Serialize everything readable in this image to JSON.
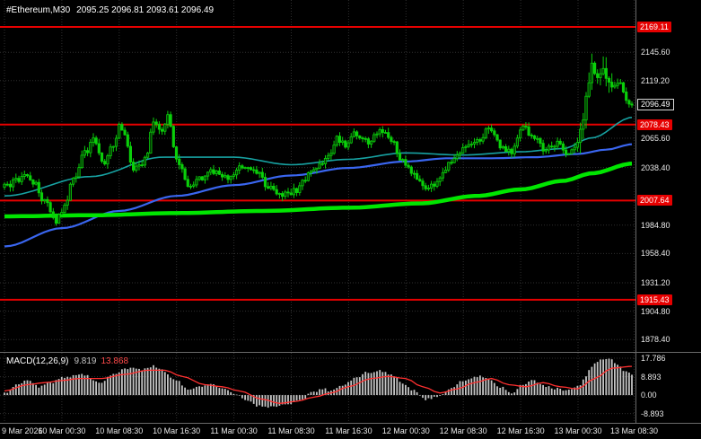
{
  "header": {
    "symbol": "#Ethereum,M30",
    "ohlc": "2095.25 2096.81 2093.61 2096.49"
  },
  "macd": {
    "label": "MACD(12,26,9)",
    "value_main": "9.819",
    "value_signal": "13.868"
  },
  "colors": {
    "background": "#000000",
    "grid": "#2f2f2f",
    "candle": "#0acf0a",
    "candle_fill": "#033703",
    "level_line": "#e60000",
    "ma_fast_teal": "#17a2a2",
    "ma_mid_blue": "#3a66f0",
    "ma_slow_green": "#00e600",
    "macd_hist": "#c4c4c4",
    "macd_signal": "#ff3030",
    "axis_text": "#e8e8e8"
  },
  "chart_data": {
    "type": "candlestick",
    "symbol": "#Ethereum",
    "timeframe": "M30",
    "title": "#Ethereum,M30 price chart with MACD(12,26,9)",
    "last_price": 2096.49,
    "current_label": {
      "text": "2096.49",
      "price": 2096.49
    },
    "ylim": [
      1866.9,
      2194.2
    ],
    "n_candles": 220,
    "levels": [
      {
        "text": "2169.11",
        "price": 2169.11
      },
      {
        "text": "2078.43",
        "price": 2078.43
      },
      {
        "text": "2007.64",
        "price": 2007.64
      },
      {
        "text": "1915.43",
        "price": 1915.43
      }
    ],
    "price_axis_labels": [
      {
        "text": "2145.60",
        "price": 2145.6
      },
      {
        "text": "2119.20",
        "price": 2119.2
      },
      {
        "text": "2065.60",
        "price": 2065.6
      },
      {
        "text": "2038.40",
        "price": 2038.4
      },
      {
        "text": "1984.80",
        "price": 1984.8
      },
      {
        "text": "1958.40",
        "price": 1958.4
      },
      {
        "text": "1931.20",
        "price": 1931.2
      },
      {
        "text": "1904.80",
        "price": 1904.8
      },
      {
        "text": "1878.40",
        "price": 1878.4
      }
    ],
    "time_labels": [
      "9 Mar 2026",
      "10 Mar 00:30",
      "10 Mar 08:30",
      "10 Mar 16:30",
      "11 Mar 00:30",
      "11 Mar 08:30",
      "11 Mar 16:30",
      "12 Mar 00:30",
      "12 Mar 08:30",
      "12 Mar 16:30",
      "13 Mar 00:30",
      "13 Mar 08:30"
    ],
    "price_path": [
      [
        0,
        2020
      ],
      [
        4,
        2026
      ],
      [
        8,
        2031
      ],
      [
        11,
        2022
      ],
      [
        14,
        2006
      ],
      [
        18,
        1989
      ],
      [
        21,
        2002
      ],
      [
        24,
        2028
      ],
      [
        28,
        2052
      ],
      [
        31,
        2064
      ],
      [
        35,
        2043
      ],
      [
        38,
        2060
      ],
      [
        40,
        2077
      ],
      [
        42,
        2068
      ],
      [
        45,
        2034
      ],
      [
        47,
        2040
      ],
      [
        49,
        2046
      ],
      [
        52,
        2080
      ],
      [
        55,
        2074
      ],
      [
        57,
        2085
      ],
      [
        60,
        2046
      ],
      [
        64,
        2023
      ],
      [
        69,
        2029
      ],
      [
        74,
        2036
      ],
      [
        78,
        2028
      ],
      [
        83,
        2039
      ],
      [
        88,
        2033
      ],
      [
        92,
        2021
      ],
      [
        97,
        2012
      ],
      [
        102,
        2018
      ],
      [
        107,
        2035
      ],
      [
        111,
        2043
      ],
      [
        114,
        2050
      ],
      [
        116,
        2066
      ],
      [
        119,
        2059
      ],
      [
        122,
        2071
      ],
      [
        127,
        2061
      ],
      [
        131,
        2074
      ],
      [
        135,
        2064
      ],
      [
        139,
        2043
      ],
      [
        143,
        2031
      ],
      [
        147,
        2018
      ],
      [
        151,
        2023
      ],
      [
        155,
        2042
      ],
      [
        160,
        2055
      ],
      [
        165,
        2062
      ],
      [
        169,
        2074
      ],
      [
        173,
        2059
      ],
      [
        177,
        2052
      ],
      [
        181,
        2077
      ],
      [
        185,
        2065
      ],
      [
        189,
        2055
      ],
      [
        193,
        2062
      ],
      [
        196,
        2049
      ],
      [
        200,
        2061
      ],
      [
        202,
        2085
      ],
      [
        203,
        2105
      ],
      [
        205,
        2133
      ],
      [
        207,
        2121
      ],
      [
        209,
        2128
      ],
      [
        212,
        2112
      ],
      [
        214,
        2119
      ],
      [
        217,
        2103
      ],
      [
        219,
        2096.49
      ]
    ],
    "ma": [
      {
        "name": "ma-fast-teal",
        "color_key": "ma_fast_teal",
        "width": 1.6,
        "points": [
          [
            0,
            2012
          ],
          [
            30,
            2030
          ],
          [
            55,
            2048
          ],
          [
            80,
            2048
          ],
          [
            100,
            2041
          ],
          [
            120,
            2046
          ],
          [
            140,
            2052
          ],
          [
            160,
            2050
          ],
          [
            180,
            2053
          ],
          [
            195,
            2056
          ],
          [
            205,
            2066
          ],
          [
            219,
            2085
          ]
        ]
      },
      {
        "name": "ma-mid-blue",
        "color_key": "ma_mid_blue",
        "width": 2.2,
        "points": [
          [
            0,
            1965
          ],
          [
            20,
            1982
          ],
          [
            40,
            1998
          ],
          [
            60,
            2012
          ],
          [
            80,
            2022
          ],
          [
            100,
            2031
          ],
          [
            120,
            2038
          ],
          [
            140,
            2044
          ],
          [
            155,
            2047
          ],
          [
            170,
            2047
          ],
          [
            185,
            2048
          ],
          [
            200,
            2051
          ],
          [
            210,
            2055
          ],
          [
            219,
            2060
          ]
        ]
      },
      {
        "name": "ma-slow-green",
        "color_key": "ma_slow_green",
        "width": 4.5,
        "points": [
          [
            0,
            1993
          ],
          [
            30,
            1994
          ],
          [
            60,
            1996
          ],
          [
            90,
            1998
          ],
          [
            120,
            2001
          ],
          [
            145,
            2005
          ],
          [
            165,
            2012
          ],
          [
            180,
            2018
          ],
          [
            195,
            2026
          ],
          [
            205,
            2033
          ],
          [
            219,
            2042
          ]
        ]
      }
    ],
    "macd_panel": {
      "ylim": [
        -13.4,
        20.4
      ],
      "axis_labels": [
        {
          "text": "17.786",
          "value": 17.786
        },
        {
          "text": "8.893",
          "value": 8.893
        },
        {
          "text": "0.00",
          "value": 0
        },
        {
          "text": "-8.893",
          "value": -8.893
        }
      ],
      "histogram_path": [
        [
          0,
          1
        ],
        [
          4,
          5
        ],
        [
          8,
          7
        ],
        [
          12,
          4
        ],
        [
          16,
          6
        ],
        [
          22,
          9
        ],
        [
          28,
          10
        ],
        [
          33,
          6
        ],
        [
          38,
          10
        ],
        [
          43,
          13
        ],
        [
          48,
          12
        ],
        [
          52,
          14
        ],
        [
          55,
          12
        ],
        [
          60,
          7
        ],
        [
          64,
          3
        ],
        [
          68,
          4
        ],
        [
          72,
          5
        ],
        [
          76,
          3
        ],
        [
          80,
          1
        ],
        [
          84,
          -2
        ],
        [
          88,
          -5
        ],
        [
          92,
          -6
        ],
        [
          96,
          -5
        ],
        [
          100,
          -4
        ],
        [
          104,
          -2
        ],
        [
          107,
          1
        ],
        [
          111,
          3
        ],
        [
          114,
          2
        ],
        [
          118,
          5
        ],
        [
          122,
          8
        ],
        [
          127,
          11
        ],
        [
          131,
          12
        ],
        [
          135,
          10
        ],
        [
          139,
          6
        ],
        [
          143,
          2
        ],
        [
          147,
          -2
        ],
        [
          151,
          -1
        ],
        [
          155,
          3
        ],
        [
          160,
          7
        ],
        [
          165,
          9
        ],
        [
          169,
          8
        ],
        [
          173,
          4
        ],
        [
          177,
          1
        ],
        [
          181,
          5
        ],
        [
          185,
          7
        ],
        [
          189,
          4
        ],
        [
          193,
          3
        ],
        [
          196,
          2
        ],
        [
          200,
          4
        ],
        [
          203,
          9
        ],
        [
          205,
          14
        ],
        [
          208,
          17
        ],
        [
          211,
          17.5
        ],
        [
          214,
          15
        ],
        [
          217,
          11
        ],
        [
          219,
          9.82
        ]
      ],
      "signal_path": [
        [
          0,
          2
        ],
        [
          8,
          5
        ],
        [
          14,
          6
        ],
        [
          20,
          7
        ],
        [
          26,
          8
        ],
        [
          34,
          8
        ],
        [
          42,
          10
        ],
        [
          50,
          12
        ],
        [
          56,
          12
        ],
        [
          62,
          9
        ],
        [
          70,
          5
        ],
        [
          76,
          4
        ],
        [
          82,
          2
        ],
        [
          90,
          -2
        ],
        [
          96,
          -4
        ],
        [
          102,
          -3
        ],
        [
          108,
          -1
        ],
        [
          114,
          1
        ],
        [
          120,
          4
        ],
        [
          128,
          8
        ],
        [
          134,
          9
        ],
        [
          140,
          8
        ],
        [
          146,
          4
        ],
        [
          152,
          1
        ],
        [
          158,
          3
        ],
        [
          164,
          6
        ],
        [
          170,
          8
        ],
        [
          176,
          5
        ],
        [
          182,
          4
        ],
        [
          188,
          6
        ],
        [
          194,
          4
        ],
        [
          200,
          3
        ],
        [
          206,
          8
        ],
        [
          212,
          13
        ],
        [
          219,
          13.87
        ]
      ]
    }
  }
}
